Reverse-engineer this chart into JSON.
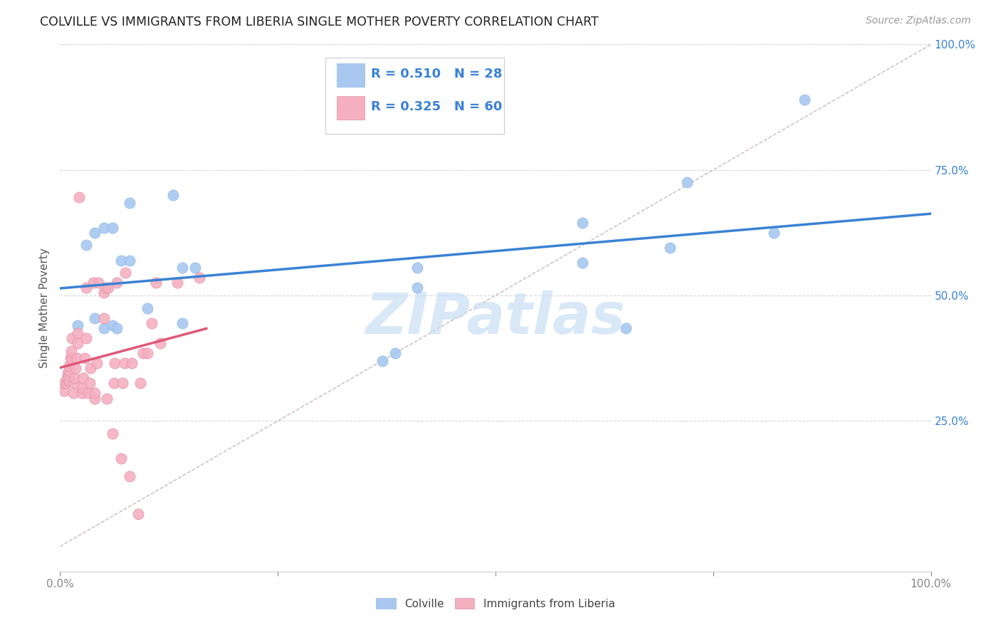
{
  "title": "COLVILLE VS IMMIGRANTS FROM LIBERIA SINGLE MOTHER POVERTY CORRELATION CHART",
  "source": "Source: ZipAtlas.com",
  "ylabel": "Single Mother Poverty",
  "colville_R": 0.51,
  "colville_N": 28,
  "liberia_R": 0.325,
  "liberia_N": 60,
  "colville_color": "#a8c8f0",
  "liberia_color": "#f5b0c0",
  "trend_colville_color": "#3a82d4",
  "trend_liberia_color": "#e05878",
  "diagonal_color": "#d0b8b8",
  "background_color": "#ffffff",
  "grid_color": "#d8d8d8",
  "legend_text_color": "#3a82d4",
  "watermark": "ZIPatlas",
  "watermark_color": "#c8dff5",
  "colville_points_x": [
    0.02,
    0.03,
    0.04,
    0.04,
    0.05,
    0.05,
    0.06,
    0.06,
    0.065,
    0.07,
    0.08,
    0.08,
    0.1,
    0.13,
    0.14,
    0.14,
    0.155,
    0.37,
    0.385,
    0.41,
    0.41,
    0.6,
    0.6,
    0.65,
    0.7,
    0.72,
    0.82,
    0.855
  ],
  "colville_points_y": [
    0.44,
    0.6,
    0.455,
    0.625,
    0.435,
    0.635,
    0.44,
    0.635,
    0.435,
    0.57,
    0.57,
    0.685,
    0.475,
    0.7,
    0.445,
    0.555,
    0.555,
    0.37,
    0.385,
    0.515,
    0.555,
    0.565,
    0.645,
    0.435,
    0.595,
    0.725,
    0.625,
    0.89
  ],
  "liberia_points_x": [
    0.005,
    0.005,
    0.007,
    0.008,
    0.009,
    0.009,
    0.01,
    0.01,
    0.01,
    0.01,
    0.012,
    0.013,
    0.013,
    0.014,
    0.015,
    0.016,
    0.017,
    0.018,
    0.019,
    0.02,
    0.02,
    0.022,
    0.025,
    0.026,
    0.027,
    0.028,
    0.03,
    0.03,
    0.032,
    0.034,
    0.035,
    0.038,
    0.04,
    0.04,
    0.042,
    0.044,
    0.05,
    0.05,
    0.052,
    0.054,
    0.055,
    0.06,
    0.062,
    0.063,
    0.065,
    0.07,
    0.072,
    0.074,
    0.075,
    0.08,
    0.082,
    0.09,
    0.092,
    0.095,
    0.1,
    0.105,
    0.11,
    0.115,
    0.135,
    0.16
  ],
  "liberia_points_y": [
    0.31,
    0.325,
    0.325,
    0.335,
    0.335,
    0.345,
    0.33,
    0.34,
    0.35,
    0.36,
    0.375,
    0.375,
    0.39,
    0.415,
    0.305,
    0.325,
    0.335,
    0.355,
    0.375,
    0.405,
    0.425,
    0.695,
    0.305,
    0.315,
    0.335,
    0.375,
    0.415,
    0.515,
    0.305,
    0.325,
    0.355,
    0.525,
    0.295,
    0.305,
    0.365,
    0.525,
    0.455,
    0.505,
    0.515,
    0.295,
    0.515,
    0.225,
    0.325,
    0.365,
    0.525,
    0.175,
    0.325,
    0.365,
    0.545,
    0.14,
    0.365,
    0.065,
    0.325,
    0.385,
    0.385,
    0.445,
    0.525,
    0.405,
    0.525,
    0.535
  ],
  "xlim": [
    0.0,
    1.0
  ],
  "ylim_min": -0.05,
  "ylim_max": 1.0,
  "x_ticks": [
    0.0,
    0.25,
    0.5,
    0.75,
    1.0
  ],
  "y_ticks": [
    0.25,
    0.5,
    0.75,
    1.0
  ]
}
